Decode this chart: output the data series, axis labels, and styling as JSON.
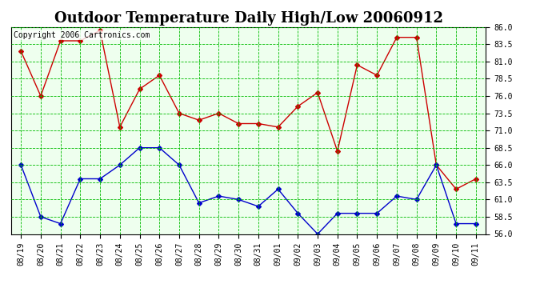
{
  "title": "Outdoor Temperature Daily High/Low 20060912",
  "copyright": "Copyright 2006 Cartronics.com",
  "dates": [
    "08/19",
    "08/20",
    "08/21",
    "08/22",
    "08/23",
    "08/24",
    "08/25",
    "08/26",
    "08/27",
    "08/28",
    "08/29",
    "08/30",
    "08/31",
    "09/01",
    "09/02",
    "09/03",
    "09/04",
    "09/05",
    "09/06",
    "09/07",
    "09/08",
    "09/09",
    "09/10",
    "09/11"
  ],
  "highs": [
    82.5,
    76.0,
    84.0,
    84.0,
    85.5,
    71.5,
    77.0,
    79.0,
    73.5,
    72.5,
    73.5,
    72.0,
    72.0,
    71.5,
    74.5,
    76.5,
    68.0,
    80.5,
    79.0,
    84.5,
    84.5,
    66.0,
    62.5,
    64.0
  ],
  "lows": [
    66.0,
    58.5,
    57.5,
    64.0,
    64.0,
    66.0,
    68.5,
    68.5,
    66.0,
    60.5,
    61.5,
    61.0,
    60.0,
    62.5,
    59.0,
    56.0,
    59.0,
    59.0,
    59.0,
    61.5,
    61.0,
    66.0,
    57.5,
    57.5
  ],
  "high_color": "#CC0000",
  "low_color": "#0000CC",
  "marker": "D",
  "marker_size": 3,
  "linewidth": 1.0,
  "ylim_min": 56.0,
  "ylim_max": 86.0,
  "yticks": [
    56.0,
    58.5,
    61.0,
    63.5,
    66.0,
    68.5,
    71.0,
    73.5,
    76.0,
    78.5,
    81.0,
    83.5,
    86.0
  ],
  "grid_color": "#00BB00",
  "bg_color": "#FFFFFF",
  "plot_bg": "#EEFFEE",
  "title_fontsize": 13,
  "copyright_fontsize": 7,
  "tick_fontsize": 7,
  "figwidth": 6.9,
  "figheight": 3.75,
  "dpi": 100
}
